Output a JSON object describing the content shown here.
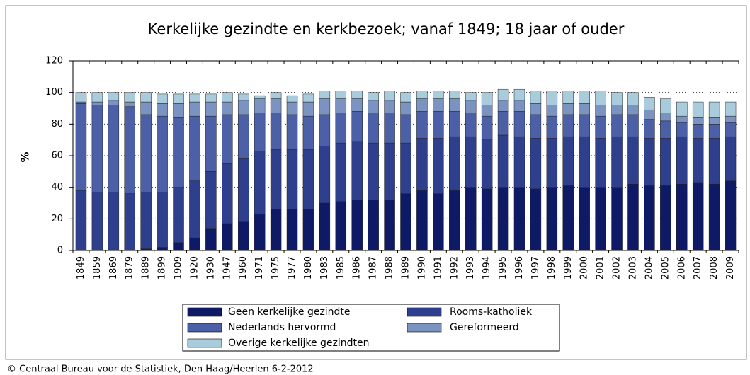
{
  "chart_data": {
    "type": "stacked_bar",
    "title": "Kerkelijke gezindte en kerkbezoek; vanaf 1849; 18 jaar of ouder",
    "y_label": "%",
    "source": "© Centraal Bureau voor de Statistiek, Den Haag/Heerlen 6-2-2012",
    "categories": [
      "1849",
      "1859",
      "1869",
      "1879",
      "1889",
      "1899",
      "1909",
      "1920",
      "1930",
      "1947",
      "1960",
      "1971",
      "1975",
      "1977",
      "1980",
      "1983",
      "1985",
      "1986",
      "1987",
      "1988",
      "1989",
      "1990",
      "1991",
      "1992",
      "1993",
      "1994",
      "1995",
      "1996",
      "1997",
      "1998",
      "1999",
      "2000",
      "2001",
      "2002",
      "2003",
      "2004",
      "2005",
      "2006",
      "2007",
      "2008",
      "2009"
    ],
    "series": [
      {
        "name": "Geen kerkelijke gezindte",
        "color": "#0f1a66",
        "values": [
          0,
          0,
          0,
          0,
          1,
          2,
          5,
          8,
          14,
          17,
          18,
          23,
          26,
          26,
          26,
          30,
          31,
          32,
          32,
          32,
          36,
          38,
          36,
          38,
          40,
          39,
          40,
          40,
          39,
          40,
          41,
          40,
          40,
          40,
          42,
          41,
          41,
          42,
          43,
          42,
          44
        ]
      },
      {
        "name": "Rooms-katholiek",
        "color": "#2e3f8e",
        "values": [
          38,
          37,
          37,
          36,
          36,
          35,
          35,
          36,
          36,
          38,
          40,
          40,
          38,
          38,
          38,
          36,
          37,
          37,
          36,
          36,
          32,
          33,
          35,
          34,
          32,
          31,
          33,
          32,
          32,
          31,
          31,
          32,
          31,
          32,
          30,
          30,
          30,
          30,
          28,
          29,
          28
        ]
      },
      {
        "name": "Nederlands hervormd",
        "color": "#4b60a6",
        "values": [
          55,
          55,
          55,
          55,
          49,
          48,
          44,
          41,
          35,
          31,
          28,
          24,
          23,
          22,
          21,
          20,
          19,
          19,
          19,
          19,
          18,
          17,
          17,
          16,
          15,
          15,
          15,
          16,
          15,
          14,
          14,
          14,
          14,
          14,
          14,
          12,
          11,
          9,
          9,
          9,
          9
        ]
      },
      {
        "name": "Gereformeerd",
        "color": "#7b93c0",
        "values": [
          1,
          2,
          3,
          3,
          8,
          8,
          9,
          9,
          9,
          8,
          9,
          9,
          9,
          8,
          9,
          10,
          9,
          8,
          8,
          8,
          8,
          8,
          8,
          8,
          8,
          7,
          7,
          7,
          7,
          7,
          7,
          7,
          7,
          6,
          6,
          6,
          5,
          4,
          4,
          4,
          4
        ]
      },
      {
        "name": "Overige kerkelijke gezindten",
        "color": "#a8ccdb",
        "values": [
          6,
          6,
          5,
          6,
          6,
          6,
          6,
          5,
          5,
          6,
          4,
          2,
          4,
          4,
          5,
          5,
          5,
          5,
          5,
          6,
          6,
          5,
          5,
          5,
          5,
          8,
          7,
          7,
          8,
          9,
          8,
          8,
          9,
          8,
          8,
          8,
          9,
          9,
          10,
          10,
          9
        ]
      }
    ],
    "ylim": [
      0,
      120
    ],
    "yticks": [
      0,
      20,
      40,
      60,
      80,
      100,
      120
    ],
    "grid": true
  }
}
